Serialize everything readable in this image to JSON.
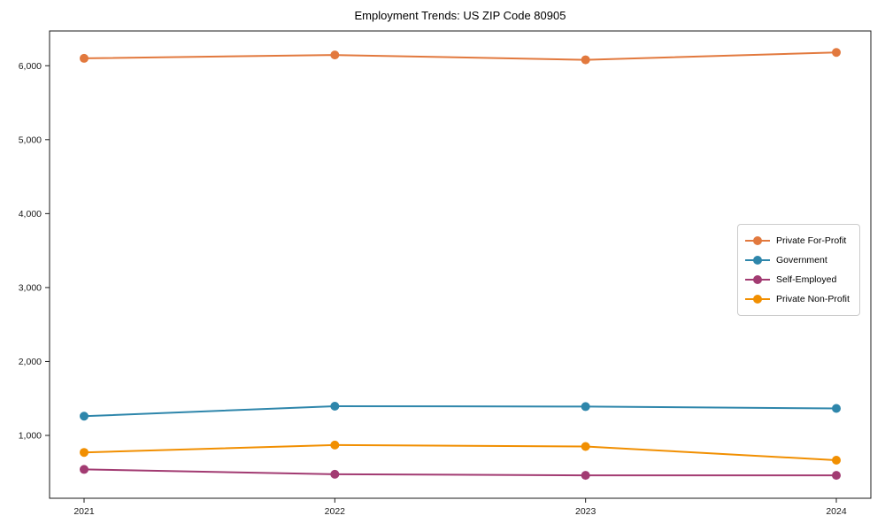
{
  "chart_data": {
    "type": "line",
    "title": "Employment Trends: US ZIP Code 80905",
    "xlabel": "",
    "ylabel": "",
    "x_categories": [
      "2021",
      "2022",
      "2023",
      "2024"
    ],
    "series": [
      {
        "name": "Private For-Profit",
        "color": "#E2793E",
        "values": [
          6100,
          6145,
          6080,
          6180
        ]
      },
      {
        "name": "Government",
        "color": "#2E86AB",
        "values": [
          1260,
          1395,
          1390,
          1365
        ]
      },
      {
        "name": "Self-Employed",
        "color": "#A23B72",
        "values": [
          540,
          475,
          460,
          460
        ]
      },
      {
        "name": "Private Non-Profit",
        "color": "#F18F01",
        "values": [
          770,
          870,
          850,
          665
        ]
      }
    ],
    "yticks": [
      {
        "value": 1000,
        "label": "1,000"
      },
      {
        "value": 2000,
        "label": "2,000"
      },
      {
        "value": 3000,
        "label": "3,000"
      },
      {
        "value": 4000,
        "label": "4,000"
      },
      {
        "value": 5000,
        "label": "5,000"
      },
      {
        "value": 6000,
        "label": "6,000"
      }
    ],
    "ylim": [
      150,
      6470
    ],
    "grid": false,
    "legend_position": "center right",
    "axis_color": "#1a1a1a",
    "tick_label_color": "#1a1a1a"
  }
}
